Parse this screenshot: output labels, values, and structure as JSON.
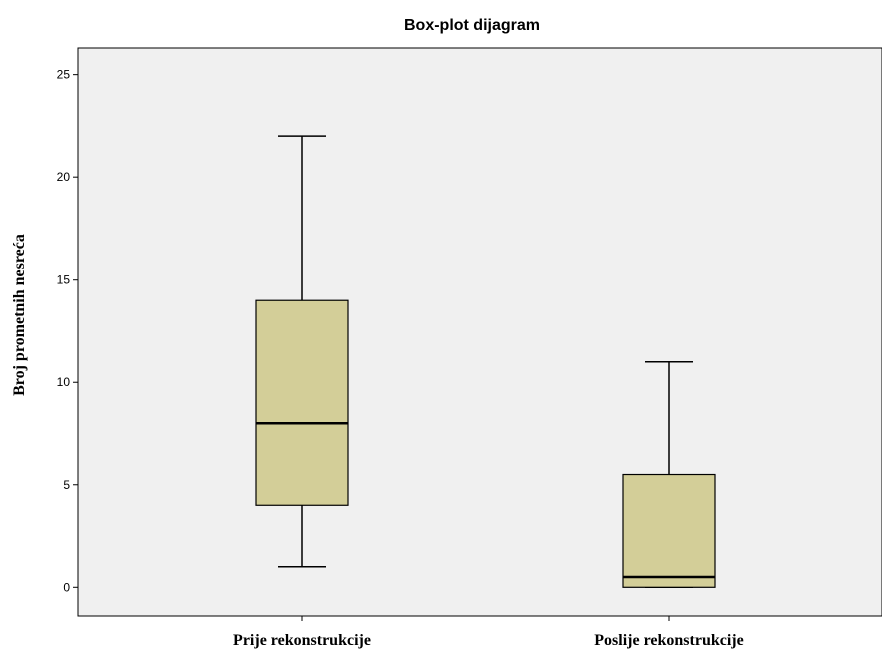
{
  "chart_data": {
    "type": "boxplot",
    "title": "Box-plot dijagram",
    "xlabel": "",
    "ylabel": "Broj prometnih nesreća",
    "ylim": [
      -1.4,
      26.3
    ],
    "yticks": [
      0,
      5,
      10,
      15,
      20,
      25
    ],
    "categories": [
      "Prije rekonstrukcije",
      "Poslije rekonstrukcije"
    ],
    "boxes": [
      {
        "category": "Prije rekonstrukcije",
        "min": 1,
        "q1": 4,
        "median": 8,
        "q3": 14,
        "max": 22
      },
      {
        "category": "Poslije rekonstrukcije",
        "min": 0,
        "q1": 0,
        "median": 0.5,
        "q3": 5.5,
        "max": 11
      }
    ],
    "colors": {
      "plot_background": "#f0f0f0",
      "box_fill": "#d3ce98",
      "stroke": "#000000"
    },
    "grid": false
  }
}
